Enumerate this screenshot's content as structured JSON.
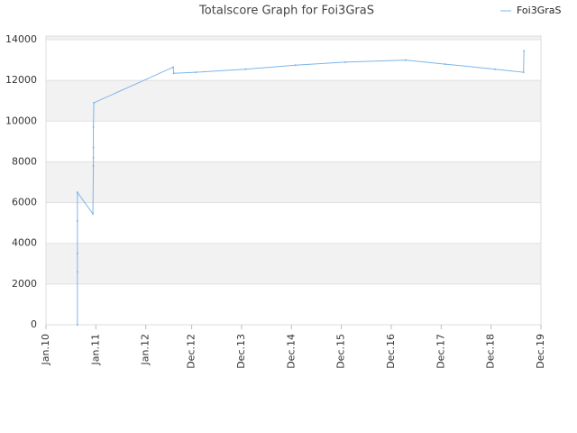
{
  "chart_data": {
    "type": "line",
    "title": "Totalscore Graph for Foi3GraS",
    "x": [
      2010.63,
      2010.63,
      2010.63,
      2010.63,
      2010.63,
      2010.94,
      2010.95,
      2010.95,
      2010.95,
      2010.95,
      2010.96,
      2012.55,
      2012.56,
      2013.0,
      2014.0,
      2015.0,
      2016.0,
      2017.21,
      2018.0,
      2019.0,
      2019.57,
      2019.58
    ],
    "series": [
      {
        "name": "Foi3GraS",
        "color": "#7cb5ec",
        "values": [
          0,
          2600,
          3500,
          5100,
          6500,
          5450,
          7800,
          8200,
          8700,
          9700,
          10900,
          12650,
          12350,
          12400,
          12550,
          12750,
          12900,
          13000,
          12800,
          12550,
          12400,
          13450
        ]
      }
    ],
    "xlim": [
      2010.0,
      2019.92
    ],
    "xticks": [
      {
        "value": 2010.0,
        "label": "Jan.10"
      },
      {
        "value": 2011.0,
        "label": "Jan.11"
      },
      {
        "value": 2012.0,
        "label": "Jan.12"
      },
      {
        "value": 2012.92,
        "label": "Dec.12"
      },
      {
        "value": 2013.92,
        "label": "Dec.13"
      },
      {
        "value": 2014.92,
        "label": "Dec.14"
      },
      {
        "value": 2015.92,
        "label": "Dec.15"
      },
      {
        "value": 2016.92,
        "label": "Dec.16"
      },
      {
        "value": 2017.92,
        "label": "Dec.17"
      },
      {
        "value": 2018.92,
        "label": "Dec.18"
      },
      {
        "value": 2019.92,
        "label": "Dec.19"
      }
    ],
    "ylim": [
      0,
      14000
    ],
    "yticks": [
      0,
      2000,
      4000,
      6000,
      8000,
      10000,
      12000,
      14000
    ],
    "grid": true,
    "legend": "top-right"
  }
}
